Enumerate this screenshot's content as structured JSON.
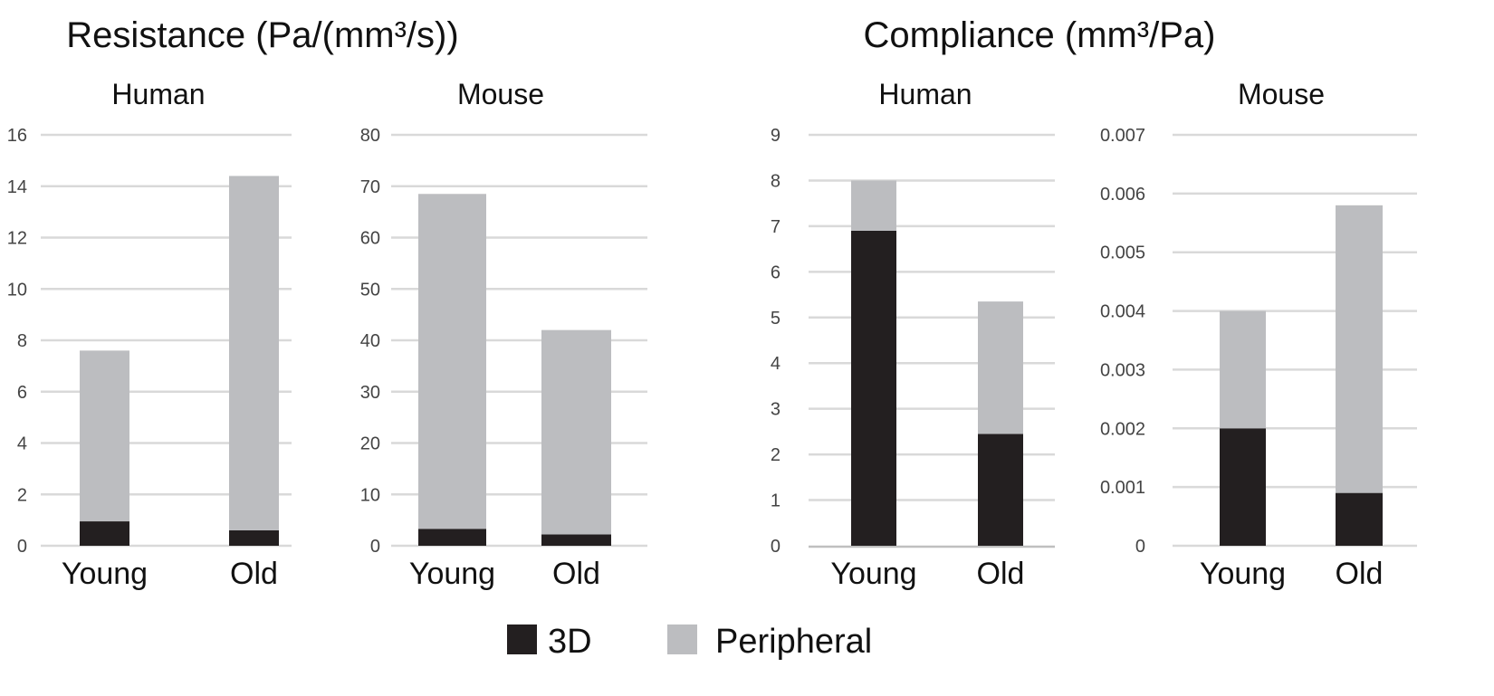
{
  "chart_data": [
    {
      "type": "bar",
      "stacked": true,
      "group_title": "Resistance (Pa/(mm³/s))",
      "title": "Human",
      "categories": [
        "Young",
        "Old"
      ],
      "ylim": [
        0,
        16
      ],
      "yticks": [
        0,
        2,
        4,
        6,
        8,
        10,
        12,
        14,
        16
      ],
      "series": [
        {
          "name": "3D",
          "values": [
            0.95,
            0.6
          ]
        },
        {
          "name": "Peripheral",
          "values": [
            6.65,
            13.8
          ]
        }
      ]
    },
    {
      "type": "bar",
      "stacked": true,
      "group_title": "Resistance (Pa/(mm³/s))",
      "title": "Mouse",
      "categories": [
        "Young",
        "Old"
      ],
      "ylim": [
        0,
        80
      ],
      "yticks": [
        0,
        10,
        20,
        30,
        40,
        50,
        60,
        70,
        80
      ],
      "series": [
        {
          "name": "3D",
          "values": [
            3.3,
            2.2
          ]
        },
        {
          "name": "Peripheral",
          "values": [
            65.2,
            39.8
          ]
        }
      ]
    },
    {
      "type": "bar",
      "stacked": true,
      "group_title": "Compliance (mm³/Pa)",
      "title": "Human",
      "categories": [
        "Young",
        "Old"
      ],
      "ylim": [
        0,
        9
      ],
      "yticks": [
        0,
        1,
        2,
        3,
        4,
        5,
        6,
        7,
        8,
        9
      ],
      "series": [
        {
          "name": "3D",
          "values": [
            6.9,
            2.45
          ]
        },
        {
          "name": "Peripheral",
          "values": [
            1.1,
            2.9
          ]
        }
      ]
    },
    {
      "type": "bar",
      "stacked": true,
      "group_title": "Compliance (mm³/Pa)",
      "title": "Mouse",
      "categories": [
        "Young",
        "Old"
      ],
      "ylim": [
        0,
        0.007
      ],
      "yticks": [
        "0",
        "0.001",
        "0.002",
        "0.003",
        "0.004",
        "0.005",
        "0.006",
        "0.007"
      ],
      "series": [
        {
          "name": "3D",
          "values": [
            0.002,
            0.0009
          ]
        },
        {
          "name": "Peripheral",
          "values": [
            0.002,
            0.0049
          ]
        }
      ]
    }
  ],
  "group_titles": {
    "resistance": "Resistance (Pa/(mm³/s))",
    "compliance": "Compliance (mm³/Pa)"
  },
  "legend": {
    "placement": "bottom",
    "items": [
      {
        "label": "3D",
        "color": "#231f20"
      },
      {
        "label": "Peripheral",
        "color": "#bcbdc0"
      }
    ]
  },
  "colors": {
    "grid": "#d9d9d9",
    "series3D": "#231f20",
    "peripheral": "#bcbdc0"
  }
}
